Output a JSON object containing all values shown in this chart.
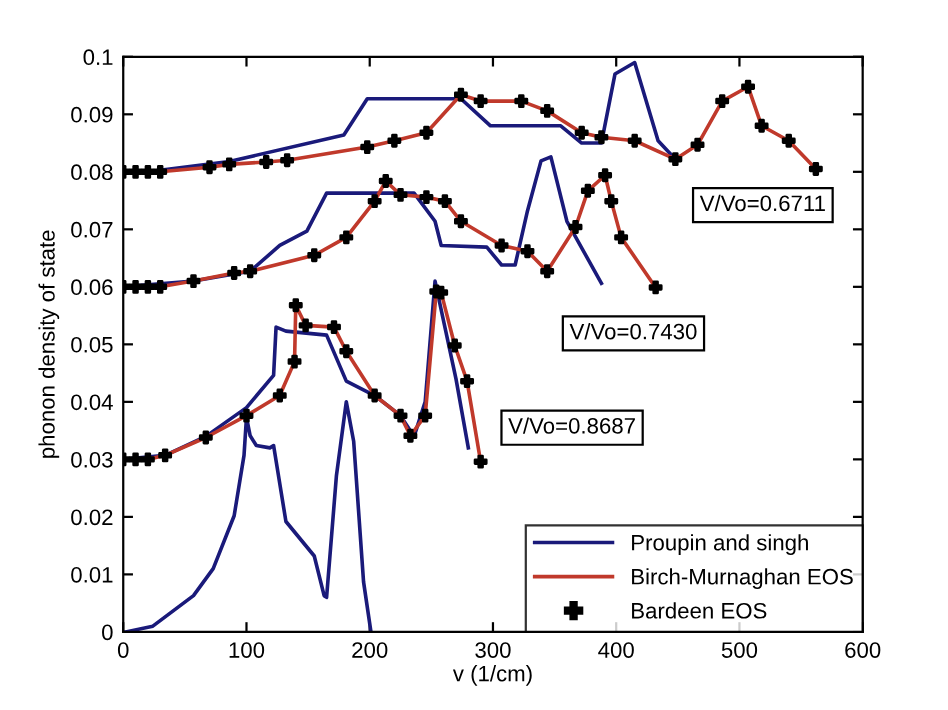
{
  "chart_data": {
    "type": "line",
    "xlabel": "v (1/cm)",
    "ylabel": "phonon density of state",
    "xlim": [
      0,
      600
    ],
    "ylim": [
      0,
      0.1
    ],
    "xticks": [
      0,
      100,
      200,
      300,
      400,
      500,
      600
    ],
    "yticks": [
      0,
      0.01,
      0.02,
      0.03,
      0.04,
      0.05,
      0.06,
      0.07,
      0.08,
      0.09,
      0.1
    ],
    "grid": false,
    "legend": "bottom right",
    "series": [
      {
        "name": "Proupin and singh",
        "color": "#1a1a7a",
        "x": [
          2,
          24,
          57,
          73,
          90,
          98,
          100,
          103,
          108,
          119,
          122,
          132,
          155,
          163,
          165,
          173,
          181,
          187,
          195,
          201
        ],
        "values": [
          0,
          0.001,
          0.0063,
          0.011,
          0.0202,
          0.0307,
          0.0373,
          0.0341,
          0.0324,
          0.032,
          0.0324,
          0.0192,
          0.0132,
          0.0063,
          0.006,
          0.0272,
          0.04,
          0.0331,
          0.0087,
          0
        ]
      },
      {
        "color": "#1a1a7a",
        "x": [
          0,
          34,
          67,
          100,
          122,
          124,
          132,
          165,
          181,
          204,
          225,
          236,
          245,
          253,
          262,
          270,
          280
        ],
        "values": [
          0.03,
          0.0307,
          0.034,
          0.039,
          0.0446,
          0.053,
          0.0523,
          0.0516,
          0.0436,
          0.0411,
          0.0376,
          0.034,
          0.04,
          0.061,
          0.052,
          0.044,
          0.032
        ]
      },
      {
        "color": "#1a1a7a",
        "x": [
          0,
          57,
          103,
          127,
          149,
          165,
          236,
          253,
          258,
          295,
          307,
          318,
          328,
          339,
          347,
          360,
          388
        ],
        "values": [
          0.06,
          0.061,
          0.0627,
          0.0672,
          0.0697,
          0.0763,
          0.0763,
          0.0714,
          0.0672,
          0.0669,
          0.0638,
          0.0638,
          0.0732,
          0.0819,
          0.0826,
          0.0714,
          0.0606
        ]
      },
      {
        "color": "#1a1a7a",
        "x": [
          20,
          86,
          179,
          198,
          274,
          298,
          355,
          372,
          388,
          399,
          415,
          434,
          448
        ],
        "values": [
          0.08,
          0.0818,
          0.0864,
          0.0927,
          0.0927,
          0.088,
          0.088,
          0.085,
          0.085,
          0.097,
          0.099,
          0.0854,
          0.0822
        ]
      },
      {
        "name": "Birch-Murnaghan EOS",
        "color": "#c0392b",
        "x": [
          0,
          20,
          34,
          67,
          100,
          127,
          139,
          140,
          148,
          171,
          181,
          204,
          225,
          233,
          245,
          254,
          258,
          269,
          279,
          290
        ],
        "values": [
          0.03,
          0.03,
          0.0307,
          0.0338,
          0.0376,
          0.0411,
          0.047,
          0.0568,
          0.0533,
          0.053,
          0.0488,
          0.0411,
          0.0376,
          0.0341,
          0.0376,
          0.0592,
          0.059,
          0.0498,
          0.0436,
          0.0296
        ]
      },
      {
        "color": "#c0392b",
        "x": [
          0,
          30,
          57,
          90,
          103,
          155,
          181,
          204,
          213,
          225,
          246,
          261,
          274,
          307,
          328,
          344,
          367,
          377,
          391,
          396,
          404,
          432
        ],
        "values": [
          0.06,
          0.06,
          0.061,
          0.0624,
          0.0627,
          0.0655,
          0.0686,
          0.0749,
          0.0784,
          0.076,
          0.0756,
          0.0749,
          0.0714,
          0.0672,
          0.0662,
          0.0627,
          0.0704,
          0.0767,
          0.0794,
          0.0749,
          0.0686,
          0.0599
        ]
      },
      {
        "color": "#c0392b",
        "x": [
          0,
          30,
          70,
          86,
          116,
          133,
          198,
          220,
          246,
          274,
          290,
          323,
          344,
          372,
          388,
          415,
          448,
          466,
          486,
          507,
          518,
          540,
          562
        ],
        "values": [
          0.08,
          0.08,
          0.0808,
          0.0813,
          0.0817,
          0.082,
          0.0843,
          0.0854,
          0.0868,
          0.0934,
          0.0923,
          0.0923,
          0.0906,
          0.0868,
          0.086,
          0.0854,
          0.0822,
          0.0847,
          0.0923,
          0.0948,
          0.088,
          0.0854,
          0.0805
        ]
      },
      {
        "name": "Bardeen EOS",
        "type": "scatter",
        "marker": "cross",
        "color": "#000000",
        "x": [
          0,
          10,
          20,
          34,
          67,
          100,
          127,
          139,
          140,
          148,
          171,
          181,
          204,
          225,
          233,
          245,
          254,
          258,
          269,
          279,
          290
        ],
        "values": [
          0.03,
          0.03,
          0.03,
          0.0307,
          0.0338,
          0.0376,
          0.0411,
          0.047,
          0.0568,
          0.0533,
          0.053,
          0.0488,
          0.0411,
          0.0376,
          0.0341,
          0.0376,
          0.0592,
          0.059,
          0.0498,
          0.0436,
          0.0296
        ]
      },
      {
        "type": "scatter",
        "marker": "cross",
        "color": "#000000",
        "x": [
          0,
          10,
          20,
          30,
          57,
          90,
          103,
          155,
          181,
          204,
          213,
          225,
          246,
          261,
          274,
          307,
          328,
          344,
          367,
          377,
          391,
          396,
          404,
          432
        ],
        "values": [
          0.06,
          0.06,
          0.06,
          0.06,
          0.061,
          0.0624,
          0.0627,
          0.0655,
          0.0686,
          0.0749,
          0.0784,
          0.076,
          0.0756,
          0.0749,
          0.0714,
          0.0672,
          0.0662,
          0.0627,
          0.0704,
          0.0767,
          0.0794,
          0.0749,
          0.0686,
          0.0599
        ]
      },
      {
        "type": "scatter",
        "marker": "cross",
        "color": "#000000",
        "x": [
          0,
          10,
          20,
          30,
          70,
          86,
          116,
          133,
          198,
          220,
          246,
          274,
          290,
          323,
          344,
          372,
          388,
          415,
          448,
          466,
          486,
          507,
          518,
          540,
          562
        ],
        "values": [
          0.08,
          0.08,
          0.08,
          0.08,
          0.0808,
          0.0813,
          0.0817,
          0.082,
          0.0843,
          0.0854,
          0.0868,
          0.0934,
          0.0923,
          0.0923,
          0.0906,
          0.0868,
          0.086,
          0.0854,
          0.0822,
          0.0847,
          0.0923,
          0.0948,
          0.088,
          0.0854,
          0.0805
        ]
      }
    ],
    "annotations": [
      "V/Vo=0.6711",
      "V/Vo=0.7430",
      "V/Vo=0.8687"
    ]
  }
}
